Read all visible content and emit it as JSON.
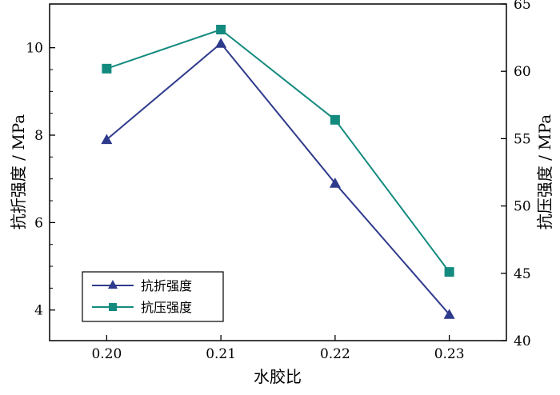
{
  "chart_data": {
    "type": "line",
    "categories": [
      "0.20",
      "0.21",
      "0.22",
      "0.23"
    ],
    "x": [
      0.2,
      0.21,
      0.22,
      0.23
    ],
    "xlabel": "水胶比",
    "ylabel_left": "抗折强度 / MPa",
    "ylabel_right": "抗压强度 / MPa",
    "left_axis": {
      "range": [
        3.3,
        11.0
      ],
      "ticks": [
        4,
        6,
        8,
        10
      ]
    },
    "right_axis": {
      "range": [
        40,
        65
      ],
      "ticks": [
        40,
        45,
        50,
        55,
        60,
        65
      ]
    },
    "x_range": [
      0.195,
      0.235
    ],
    "grid": false,
    "legend_position": "bottom-left",
    "series": [
      {
        "name": "抗折强度",
        "axis": "left",
        "marker": "triangle",
        "color": "#2e3a8c",
        "values": [
          7.9,
          10.1,
          6.9,
          3.9
        ]
      },
      {
        "name": "抗压强度",
        "axis": "right",
        "marker": "square",
        "color": "#138a7e",
        "values": [
          60.2,
          63.1,
          56.4,
          45.1
        ]
      }
    ]
  }
}
